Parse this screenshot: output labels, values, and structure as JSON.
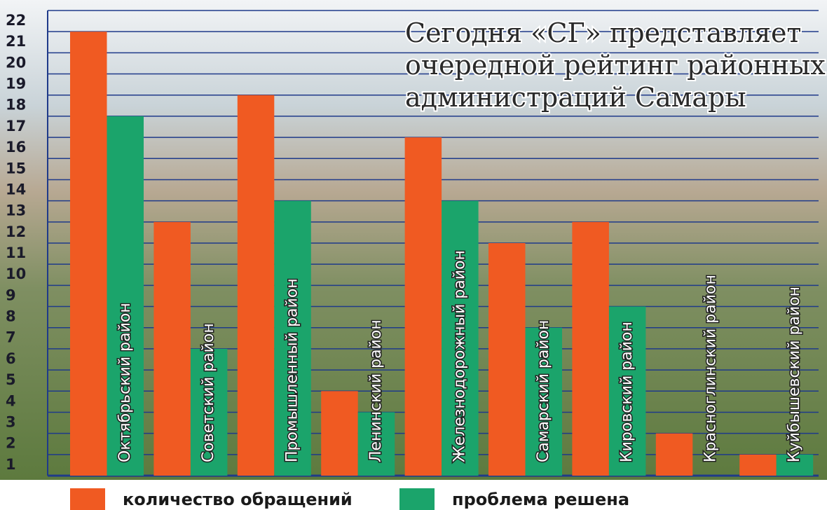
{
  "chart_data": {
    "type": "bar",
    "title": [
      "Сегодня «СГ» представляет",
      "очередной рейтинг районных",
      "администраций Самары"
    ],
    "categories": [
      "Октябрьский район",
      "Советский район",
      "Промышленный район",
      "Ленинский район",
      "Железнодорожный район",
      "Самарский район",
      "Кировский район",
      "Красноглинский район",
      "Куйбышевский район"
    ],
    "series": [
      {
        "name": "количество обращений",
        "color": "#f05a22",
        "values": [
          21,
          12,
          18,
          4,
          16,
          11,
          12,
          2,
          1
        ]
      },
      {
        "name": "проблема решена",
        "color": "#1ba46b",
        "values": [
          17,
          6,
          13,
          3,
          13,
          7,
          8,
          0,
          1
        ]
      }
    ],
    "ylim": [
      0,
      22
    ],
    "yticks": [
      1,
      2,
      3,
      4,
      5,
      6,
      7,
      8,
      9,
      10,
      11,
      12,
      13,
      14,
      15,
      16,
      17,
      18,
      19,
      20,
      21,
      22
    ],
    "grid": true
  }
}
